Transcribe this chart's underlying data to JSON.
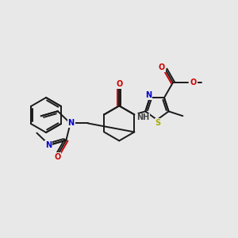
{
  "background_color": "#e8e8e8",
  "bond_color": "#1a1a1a",
  "atom_colors": {
    "N": "#0000cc",
    "O": "#cc0000",
    "S": "#aaaa00",
    "C": "#1a1a1a",
    "H": "#444444"
  },
  "figsize": [
    3.0,
    3.0
  ],
  "dpi": 100,
  "bond_lw": 1.4,
  "font_size": 7.0
}
